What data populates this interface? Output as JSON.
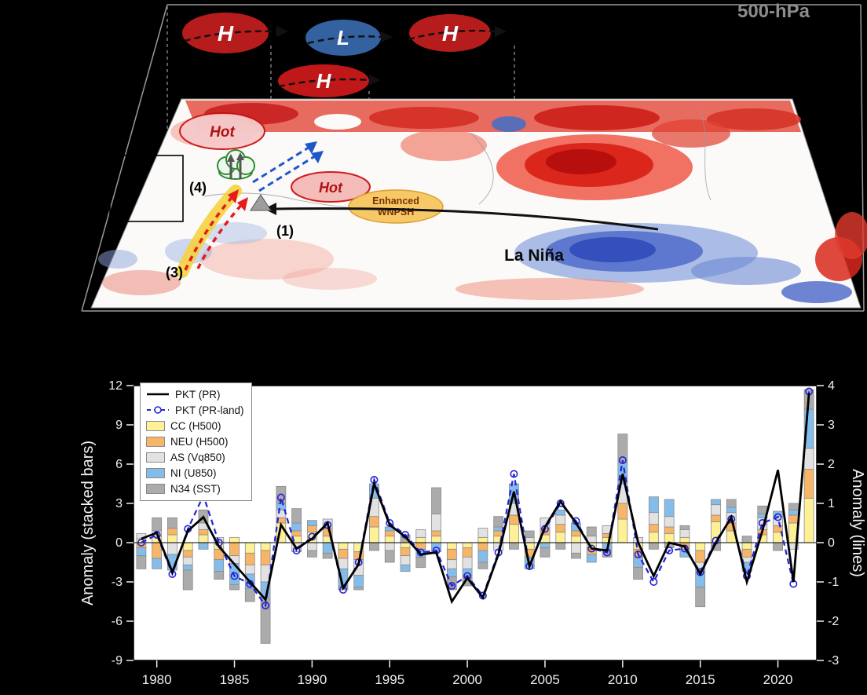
{
  "figure": {
    "panel_top": {
      "pressure_level": "500-hPa",
      "high_1": "H",
      "low_1": "L",
      "high_2": "H",
      "high_3": "H",
      "hot_1": "Hot",
      "hot_2": "Hot",
      "enhanced_1": "Enhanced",
      "enhanced_2": "WNPSH",
      "la_nina": "La Niña",
      "step_1": "(1)",
      "step_3": "(3)",
      "step_4": "(4)",
      "colors": {
        "high_fill": "#b71c1c",
        "low_fill": "#34619f",
        "warm_anomaly": "#d81f14",
        "cold_anomaly": "#4a66c8",
        "wnpsh_fill": "#f7c75f"
      }
    }
  },
  "chart_data": {
    "type": "bar",
    "title": "",
    "xlabel": "",
    "ylabel_left": "Anomaly (stacked bars)",
    "ylabel_right": "Anomaly (lines)",
    "ylim_left": [
      -9,
      12
    ],
    "ylim_right": [
      -3,
      4
    ],
    "y_ticks_left": [
      -9,
      -6,
      -3,
      0,
      3,
      6,
      9,
      12
    ],
    "y_ticks_right": [
      -3,
      -2,
      -1,
      0,
      1,
      2,
      3,
      4
    ],
    "grid": false,
    "legend_position": "top-left",
    "x": [
      1979,
      1980,
      1981,
      1982,
      1983,
      1984,
      1985,
      1986,
      1987,
      1988,
      1989,
      1990,
      1991,
      1992,
      1993,
      1994,
      1995,
      1996,
      1997,
      1998,
      1999,
      2000,
      2001,
      2002,
      2003,
      2004,
      2005,
      2006,
      2007,
      2008,
      2009,
      2010,
      2011,
      2012,
      2013,
      2014,
      2015,
      2016,
      2017,
      2018,
      2019,
      2020,
      2021,
      2022
    ],
    "x_ticks": [
      1980,
      1985,
      1990,
      1995,
      2000,
      2005,
      2010,
      2015,
      2020
    ],
    "bar_series": [
      {
        "name": "CC (H500)",
        "color": "#fdf096",
        "values": [
          0.3,
          0.5,
          0.6,
          -0.6,
          0.6,
          -0.5,
          0.4,
          -0.8,
          -0.6,
          1.5,
          0.5,
          0.8,
          0.5,
          -0.5,
          -0.7,
          1.2,
          0.5,
          -0.4,
          0.4,
          0.5,
          -0.5,
          -0.4,
          0.4,
          0.5,
          1.4,
          -0.5,
          0.6,
          0.8,
          0.5,
          -0.4,
          0.4,
          1.8,
          -0.5,
          0.8,
          0.7,
          0.4,
          -0.6,
          1.6,
          0.9,
          -0.5,
          0.6,
          0.8,
          1.5,
          3.4
        ]
      },
      {
        "name": "NEU (H500)",
        "color": "#f7b667",
        "values": [
          -0.4,
          -1.2,
          0.5,
          -0.5,
          0.4,
          -0.8,
          -1.0,
          -0.9,
          -1.1,
          0.4,
          0.4,
          0.5,
          0.6,
          -0.7,
          -0.6,
          0.8,
          0.4,
          -0.6,
          -0.5,
          0.4,
          -0.8,
          -0.7,
          -0.6,
          0.4,
          0.7,
          -0.6,
          0.5,
          0.6,
          0.4,
          -0.5,
          0.3,
          1.2,
          -0.6,
          0.6,
          0.5,
          -0.5,
          -0.9,
          0.5,
          0.6,
          -0.6,
          0.4,
          0.5,
          0.6,
          2.2
        ]
      },
      {
        "name": "AS (Vq850)",
        "color": "#e2e2e2",
        "values": [
          0.4,
          0.4,
          -0.9,
          -0.6,
          0.5,
          0.4,
          -0.6,
          -0.7,
          -1.3,
          0.6,
          -0.7,
          -0.6,
          0.7,
          -0.8,
          -1.2,
          1.4,
          -0.6,
          -0.7,
          0.6,
          1.3,
          -0.7,
          -0.9,
          0.7,
          -0.6,
          0.9,
          0.4,
          0.8,
          0.7,
          -0.8,
          0.5,
          0.6,
          1.5,
          0.4,
          0.9,
          0.8,
          0.6,
          -0.5,
          0.8,
          0.8,
          -0.4,
          0.9,
          0.7,
          -0.5,
          1.6
        ]
      },
      {
        "name": "NI (U850)",
        "color": "#85bdea",
        "values": [
          -0.6,
          -0.8,
          -1.2,
          -0.4,
          -0.5,
          -0.9,
          -1.6,
          -1.1,
          -1.2,
          0.5,
          0.6,
          0.4,
          -0.8,
          -1.3,
          -0.9,
          1.1,
          0.3,
          -0.5,
          -0.6,
          -0.7,
          -0.6,
          -0.5,
          -0.9,
          0.3,
          1.5,
          -0.9,
          -0.4,
          0.4,
          0.6,
          -0.6,
          -0.5,
          1.6,
          -0.8,
          1.2,
          1.3,
          -0.6,
          -1.4,
          0.4,
          0.4,
          -0.7,
          0.3,
          0.4,
          0.4,
          3.0
        ]
      },
      {
        "name": "N34 (SST)",
        "color": "#ababab",
        "values": [
          -1.0,
          1.0,
          0.8,
          -1.5,
          1.0,
          -0.6,
          -0.4,
          -1.0,
          -3.5,
          1.3,
          1.1,
          -0.5,
          -0.4,
          -0.3,
          -0.2,
          -0.6,
          -0.9,
          0.6,
          -0.8,
          2.0,
          -1.0,
          -0.8,
          -0.5,
          0.8,
          -0.5,
          0.5,
          -0.7,
          -0.5,
          -0.4,
          0.7,
          -0.6,
          2.2,
          -0.9,
          -0.5,
          -0.4,
          0.3,
          -1.5,
          -0.6,
          0.6,
          0.5,
          0.6,
          -0.6,
          0.5,
          1.5
        ]
      }
    ],
    "line_series": [
      {
        "name": "PKT (PR)",
        "color": "#000000",
        "style": "solid",
        "marker": "none",
        "values": [
          0.1,
          0.25,
          -0.75,
          0.3,
          0.65,
          -0.1,
          -0.55,
          -1.0,
          -1.45,
          0.45,
          -0.15,
          0.1,
          0.5,
          -1.15,
          -0.55,
          1.5,
          0.45,
          0.15,
          -0.3,
          -0.25,
          -1.5,
          -0.9,
          -1.4,
          -0.3,
          1.3,
          -0.6,
          0.4,
          1.05,
          0.5,
          -0.15,
          -0.2,
          1.75,
          0.0,
          -0.85,
          0.0,
          -0.1,
          -0.8,
          0.0,
          0.65,
          -1.0,
          0.3,
          1.85,
          -1.0,
          3.8
        ]
      },
      {
        "name": "PKT (PR-land)",
        "color": "#2323d6",
        "style": "dashed",
        "marker": "circle",
        "values": [
          0.0,
          0.2,
          -0.8,
          0.35,
          1.2,
          0.0,
          -0.85,
          -1.05,
          -1.6,
          1.15,
          -0.2,
          0.15,
          0.45,
          -1.2,
          -0.5,
          1.6,
          0.5,
          0.2,
          -0.25,
          -0.2,
          -1.1,
          -0.85,
          -1.35,
          -0.25,
          1.75,
          -0.6,
          0.35,
          1.0,
          0.55,
          -0.15,
          -0.25,
          2.1,
          -0.3,
          -1.0,
          -0.2,
          -0.15,
          -0.75,
          0.05,
          0.6,
          -0.85,
          0.5,
          0.65,
          -1.05,
          3.85
        ]
      }
    ]
  }
}
